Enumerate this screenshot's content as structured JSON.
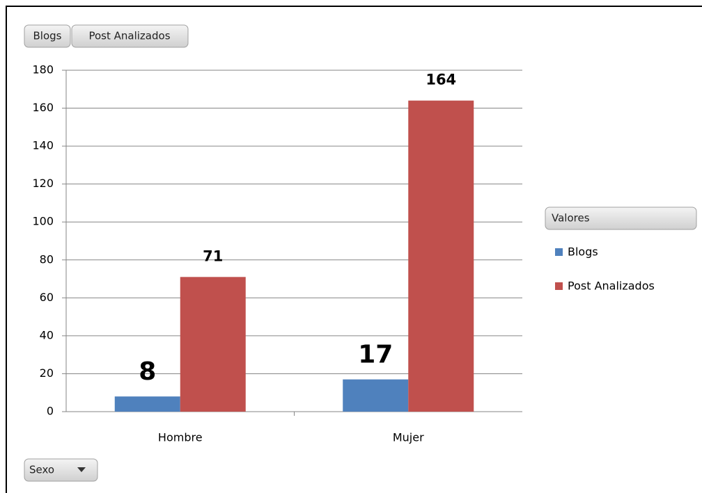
{
  "chart_data": {
    "type": "bar",
    "field_buttons": [
      "Blogs",
      "Post Analizados"
    ],
    "legend_title": "Valores",
    "axis_field": "Sexo",
    "categories": [
      "Hombre",
      "Mujer"
    ],
    "series": [
      {
        "name": "Blogs",
        "color": "#4f81bd",
        "values": [
          8,
          17
        ]
      },
      {
        "name": "Post Analizados",
        "color": "#c0504d",
        "values": [
          71,
          164
        ]
      }
    ],
    "ylim": [
      0,
      180
    ],
    "yticks": [
      0,
      20,
      40,
      60,
      80,
      100,
      120,
      140,
      160,
      180
    ],
    "grid": true
  }
}
